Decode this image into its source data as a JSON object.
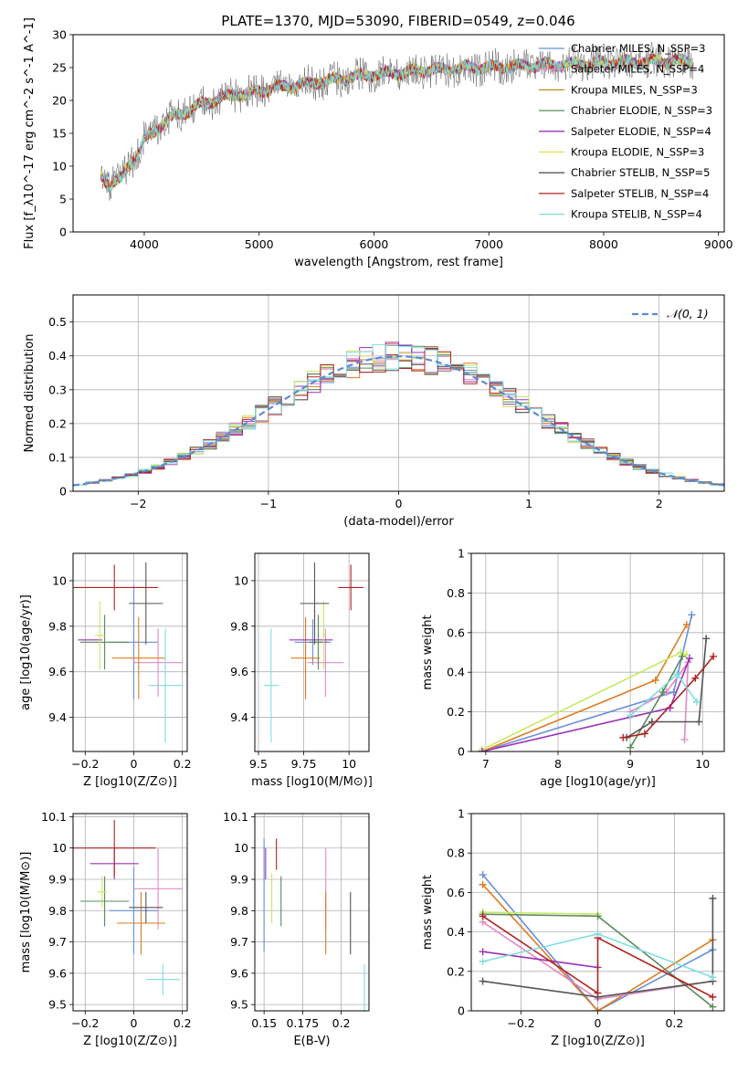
{
  "title": "PLATE=1370, MJD=53090, FIBERID=0549, z=0.046",
  "chart_data": [
    {
      "id": "spectrum",
      "type": "line",
      "xlabel": "wavelength [Angstrom, rest frame]",
      "ylabel": "Flux [f_λ10^-17 erg cm^-2 s^-1 A^-1]",
      "xlim": [
        3380,
        9050
      ],
      "ylim": [
        0,
        30
      ],
      "xticks": [
        4000,
        5000,
        6000,
        7000,
        8000,
        9000
      ],
      "yticks": [
        0,
        5,
        10,
        15,
        20,
        25,
        30
      ],
      "grid": false,
      "legend_position": "upper-right",
      "flux_profile": {
        "x": [
          3620,
          3700,
          3800,
          3850,
          3900,
          3950,
          4000,
          4100,
          4200,
          4300,
          4400,
          4500,
          4600,
          4700,
          4800,
          4900,
          5000,
          5200,
          5400,
          5600,
          5800,
          6000,
          6200,
          6400,
          6600,
          6800,
          7000,
          7200,
          7400,
          7600,
          7800,
          8000,
          8200,
          8400,
          8600,
          8800
        ],
        "y": [
          9,
          7,
          8,
          10,
          11,
          12,
          14,
          15.5,
          17,
          18,
          18.5,
          19.5,
          20,
          20.5,
          21,
          21,
          21.5,
          22,
          22.5,
          23,
          23.5,
          24,
          24.2,
          24.5,
          24.7,
          25,
          25,
          25.2,
          25.3,
          25.5,
          25.5,
          25.7,
          25.8,
          25.9,
          26,
          26
        ]
      },
      "series": [
        {
          "name": "Chabrier MILES, N_SSP=3",
          "color": "#6a8fd6"
        },
        {
          "name": "Salpeter MILES, N_SSP=4",
          "color": "#e08bc4"
        },
        {
          "name": "Kroupa MILES, N_SSP=3",
          "color": "#c08a1e"
        },
        {
          "name": "Chabrier ELODIE, N_SSP=3",
          "color": "#5a8a5a"
        },
        {
          "name": "Salpeter ELODIE, N_SSP=4",
          "color": "#9b30b8"
        },
        {
          "name": "Kroupa ELODIE, N_SSP=3",
          "color": "#e6e040"
        },
        {
          "name": "Chabrier STELIB, N_SSP=5",
          "color": "#555555"
        },
        {
          "name": "Salpeter STELIB, N_SSP=4",
          "color": "#b22222"
        },
        {
          "name": "Kroupa STELIB, N_SSP=4",
          "color": "#80dede"
        }
      ]
    },
    {
      "id": "residuals",
      "type": "line",
      "xlabel": "(data-model)/error",
      "ylabel": "Normed distribution",
      "xlim": [
        -2.5,
        2.5
      ],
      "ylim": [
        0,
        0.58
      ],
      "xticks": [
        -2,
        -1,
        0,
        1,
        2
      ],
      "yticks": [
        0,
        0.1,
        0.2,
        0.3,
        0.4,
        0.5
      ],
      "grid": true,
      "legend_position": "upper-right",
      "gaussian_label": "𝒩(0, 1)",
      "gaussian_color": "#5b8bd0",
      "series_colors": [
        "#6a8fd6",
        "#e08bc4",
        "#e07b20",
        "#5a8a5a",
        "#9b30b8",
        "#c8e860",
        "#555555",
        "#b22222",
        "#80dede"
      ]
    },
    {
      "id": "age-vs-Z",
      "type": "scatter",
      "xlabel": "Z [log10(Z/Z⊙)]",
      "ylabel": "age  [log10(age/yr)]",
      "xlim": [
        -0.25,
        0.22
      ],
      "ylim": [
        9.25,
        10.12
      ],
      "xticks": [
        -0.2,
        0.0,
        0.2
      ],
      "yticks": [
        9.4,
        9.6,
        9.8,
        10.0
      ],
      "grid": true,
      "points": [
        {
          "x": 0.0,
          "y": 9.73,
          "xerr": 0.1,
          "yerr": 0.25,
          "color": "#6a8fd6"
        },
        {
          "x": 0.1,
          "y": 9.64,
          "xerr": 0.1,
          "yerr": 0.15,
          "color": "#e08bc4"
        },
        {
          "x": 0.02,
          "y": 9.66,
          "xerr": 0.11,
          "yerr": 0.18,
          "color": "#e07b20"
        },
        {
          "x": -0.12,
          "y": 9.73,
          "xerr": 0.1,
          "yerr": 0.12,
          "color": "#5a8a5a"
        },
        {
          "x": -0.18,
          "y": 9.74,
          "xerr": 0.05,
          "yerr": 0.0,
          "color": "#9b30b8"
        },
        {
          "x": -0.14,
          "y": 9.76,
          "xerr": 0.02,
          "yerr": 0.15,
          "color": "#c8e860"
        },
        {
          "x": 0.05,
          "y": 9.9,
          "xerr": 0.07,
          "yerr": 0.18,
          "color": "#555555"
        },
        {
          "x": -0.08,
          "y": 9.97,
          "xerr": 0.18,
          "yerr": 0.1,
          "color": "#b22222"
        },
        {
          "x": 0.13,
          "y": 9.54,
          "xerr": 0.07,
          "yerr": 0.25,
          "color": "#80dede"
        }
      ]
    },
    {
      "id": "age-vs-mass",
      "type": "scatter",
      "xlabel": "mass [log10(M/M⊙)]",
      "ylabel": "",
      "xlim": [
        9.48,
        10.11
      ],
      "ylim": [
        9.25,
        10.12
      ],
      "xticks": [
        9.5,
        9.75,
        10.0
      ],
      "yticks": [
        9.4,
        9.6,
        9.8,
        10.0
      ],
      "grid": true,
      "points": [
        {
          "x": 9.8,
          "y": 9.73,
          "xerr": 0.1,
          "yerr": 0.1,
          "color": "#6a8fd6"
        },
        {
          "x": 9.87,
          "y": 9.64,
          "xerr": 0.1,
          "yerr": 0.15,
          "color": "#e08bc4"
        },
        {
          "x": 9.76,
          "y": 9.66,
          "xerr": 0.08,
          "yerr": 0.18,
          "color": "#e07b20"
        },
        {
          "x": 9.83,
          "y": 9.73,
          "xerr": 0.05,
          "yerr": 0.12,
          "color": "#5a8a5a"
        },
        {
          "x": 9.79,
          "y": 9.74,
          "xerr": 0.12,
          "yerr": 0.0,
          "color": "#9b30b8"
        },
        {
          "x": 9.86,
          "y": 9.76,
          "xerr": 0.01,
          "yerr": 0.15,
          "color": "#c8e860"
        },
        {
          "x": 9.81,
          "y": 9.9,
          "xerr": 0.08,
          "yerr": 0.18,
          "color": "#555555"
        },
        {
          "x": 10.01,
          "y": 9.97,
          "xerr": 0.07,
          "yerr": 0.1,
          "color": "#b22222"
        },
        {
          "x": 9.57,
          "y": 9.54,
          "xerr": 0.04,
          "yerr": 0.25,
          "color": "#80dede"
        }
      ]
    },
    {
      "id": "weight-vs-age",
      "type": "line",
      "xlabel": "age  [log10(age/yr)]",
      "ylabel": "mass weight",
      "xlim": [
        6.8,
        10.3
      ],
      "ylim": [
        0,
        1
      ],
      "xticks": [
        7,
        8,
        9,
        10
      ],
      "yticks": [
        0.0,
        0.2,
        0.4,
        0.6,
        0.8,
        1.0
      ],
      "grid": true,
      "series": [
        {
          "color": "#6a8fd6",
          "x": [
            6.95,
            9.6,
            9.85
          ],
          "y": [
            0.0,
            0.3,
            0.69
          ]
        },
        {
          "color": "#e07b20",
          "x": [
            6.95,
            9.35,
            9.78
          ],
          "y": [
            0.0,
            0.36,
            0.64
          ]
        },
        {
          "color": "#c8e860",
          "x": [
            6.95,
            9.7,
            9.78
          ],
          "y": [
            0.01,
            0.5,
            0.49
          ]
        },
        {
          "color": "#e08bc4",
          "x": [
            9.0,
            9.5,
            9.8,
            9.75
          ],
          "y": [
            0.2,
            0.3,
            0.45,
            0.06
          ]
        },
        {
          "color": "#9b30b8",
          "x": [
            6.95,
            9.55,
            9.82
          ],
          "y": [
            0.0,
            0.22,
            0.47
          ]
        },
        {
          "color": "#5a8a5a",
          "x": [
            9.0,
            9.45,
            9.72
          ],
          "y": [
            0.02,
            0.3,
            0.48
          ]
        },
        {
          "color": "#555555",
          "x": [
            8.95,
            9.3,
            9.95,
            10.05
          ],
          "y": [
            0.07,
            0.15,
            0.15,
            0.57
          ]
        },
        {
          "color": "#b22222",
          "x": [
            8.9,
            9.2,
            9.9,
            10.15
          ],
          "y": [
            0.07,
            0.09,
            0.37,
            0.48
          ]
        },
        {
          "color": "#80dede",
          "x": [
            9.0,
            9.65,
            9.92
          ],
          "y": [
            0.18,
            0.39,
            0.25
          ]
        }
      ]
    },
    {
      "id": "mass-vs-Z",
      "type": "scatter",
      "xlabel": "Z [log10(Z/Z⊙)]",
      "ylabel": "mass [log10(M/M⊙)]",
      "xlim": [
        -0.25,
        0.22
      ],
      "ylim": [
        9.48,
        10.11
      ],
      "xticks": [
        -0.2,
        0.0,
        0.2
      ],
      "yticks": [
        9.5,
        9.6,
        9.7,
        9.8,
        9.9,
        10.0,
        10.1
      ],
      "grid": true,
      "points": [
        {
          "x": 0.0,
          "y": 9.8,
          "xerr": 0.1,
          "yerr": 0.14,
          "color": "#6a8fd6"
        },
        {
          "x": 0.1,
          "y": 9.87,
          "xerr": 0.1,
          "yerr": 0.13,
          "color": "#e08bc4"
        },
        {
          "x": 0.03,
          "y": 9.76,
          "xerr": 0.1,
          "yerr": 0.1,
          "color": "#e07b20"
        },
        {
          "x": -0.12,
          "y": 9.83,
          "xerr": 0.1,
          "yerr": 0.08,
          "color": "#5a8a5a"
        },
        {
          "x": -0.08,
          "y": 9.95,
          "xerr": 0.1,
          "yerr": 0.05,
          "color": "#9b30b8"
        },
        {
          "x": -0.13,
          "y": 9.86,
          "xerr": 0.02,
          "yerr": 0.05,
          "color": "#c8e860"
        },
        {
          "x": 0.05,
          "y": 9.81,
          "xerr": 0.07,
          "yerr": 0.05,
          "color": "#555555"
        },
        {
          "x": -0.08,
          "y": 10.0,
          "xerr": 0.17,
          "yerr": 0.09,
          "color": "#b22222"
        },
        {
          "x": 0.12,
          "y": 9.58,
          "xerr": 0.07,
          "yerr": 0.05,
          "color": "#80dede"
        }
      ]
    },
    {
      "id": "mass-vs-EBV",
      "type": "scatter",
      "xlabel": "E(B-V)",
      "ylabel": "",
      "xlim": [
        0.144,
        0.218
      ],
      "ylim": [
        9.48,
        10.11
      ],
      "xticks": [
        0.15,
        0.175,
        0.2
      ],
      "yticks": [
        9.5,
        9.6,
        9.7,
        9.8,
        9.9,
        10.0,
        10.1
      ],
      "grid": true,
      "points": [
        {
          "x": 0.15,
          "y": 9.85,
          "xerr": 0.0,
          "yerr": 0.18,
          "color": "#6a8fd6"
        },
        {
          "x": 0.19,
          "y": 9.87,
          "xerr": 0.0,
          "yerr": 0.13,
          "color": "#e08bc4"
        },
        {
          "x": 0.19,
          "y": 9.76,
          "xerr": 0.0,
          "yerr": 0.1,
          "color": "#e07b20"
        },
        {
          "x": 0.161,
          "y": 9.83,
          "xerr": 0.0,
          "yerr": 0.08,
          "color": "#5a8a5a"
        },
        {
          "x": 0.151,
          "y": 9.95,
          "xerr": 0.0,
          "yerr": 0.05,
          "color": "#9b30b8"
        },
        {
          "x": 0.155,
          "y": 9.84,
          "xerr": 0.0,
          "yerr": 0.08,
          "color": "#c8e860"
        },
        {
          "x": 0.206,
          "y": 9.76,
          "xerr": 0.0,
          "yerr": 0.1,
          "color": "#555555"
        },
        {
          "x": 0.158,
          "y": 9.98,
          "xerr": 0.0,
          "yerr": 0.05,
          "color": "#b22222"
        },
        {
          "x": 0.215,
          "y": 9.53,
          "xerr": 0.0,
          "yerr": 0.1,
          "color": "#80dede"
        }
      ]
    },
    {
      "id": "weight-vs-Z",
      "type": "line",
      "xlabel": "Z [log10(Z/Z⊙)]",
      "ylabel": "mass weight",
      "xlim": [
        -0.33,
        0.33
      ],
      "ylim": [
        0,
        1
      ],
      "xticks": [
        -0.2,
        0.0,
        0.2
      ],
      "yticks": [
        0.0,
        0.2,
        0.4,
        0.6,
        0.8,
        1.0
      ],
      "grid": true,
      "series": [
        {
          "color": "#6a8fd6",
          "x": [
            -0.3,
            0.0,
            0.3
          ],
          "y": [
            0.69,
            0.0,
            0.31
          ]
        },
        {
          "color": "#e07b20",
          "x": [
            -0.3,
            0.0,
            0.3
          ],
          "y": [
            0.64,
            0.0,
            0.36
          ]
        },
        {
          "color": "#c8e860",
          "x": [
            -0.3,
            0.0
          ],
          "y": [
            0.5,
            0.49
          ]
        },
        {
          "color": "#e08bc4",
          "x": [
            -0.3,
            0.0,
            0.3
          ],
          "y": [
            0.45,
            0.06,
            0.15
          ]
        },
        {
          "color": "#9b30b8",
          "x": [
            -0.3,
            0.0
          ],
          "y": [
            0.3,
            0.22
          ]
        },
        {
          "color": "#5a8a5a",
          "x": [
            -0.3,
            0.0,
            0.3
          ],
          "y": [
            0.49,
            0.48,
            0.02
          ]
        },
        {
          "color": "#555555",
          "x": [
            -0.3,
            0.0,
            0.3,
            0.3
          ],
          "y": [
            0.15,
            0.07,
            0.15,
            0.57
          ]
        },
        {
          "color": "#b22222",
          "x": [
            -0.3,
            0.0,
            0.0,
            0.3
          ],
          "y": [
            0.48,
            0.09,
            0.37,
            0.07
          ]
        },
        {
          "color": "#80dede",
          "x": [
            -0.3,
            0.0,
            0.3
          ],
          "y": [
            0.25,
            0.39,
            0.17
          ]
        }
      ]
    }
  ]
}
